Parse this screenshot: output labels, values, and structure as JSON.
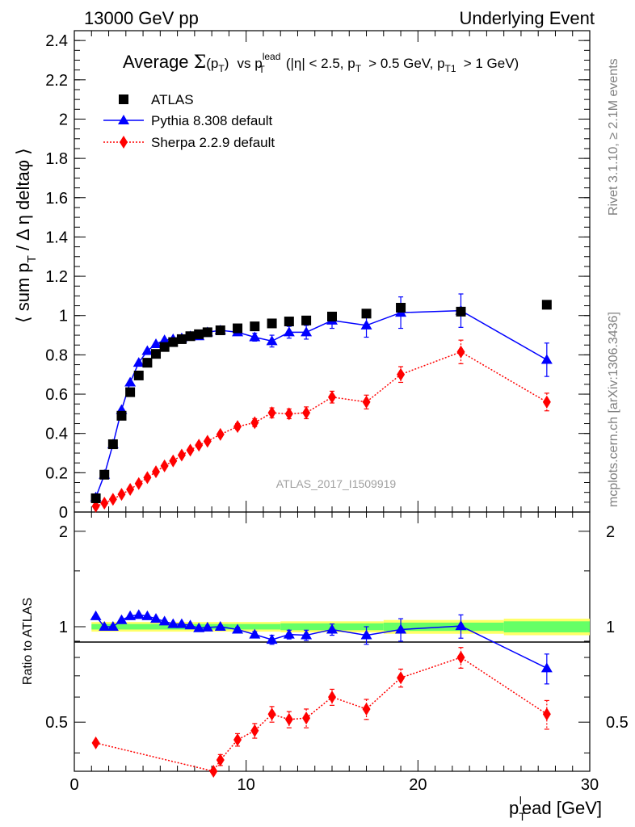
{
  "header": {
    "left": "13000 GeV pp",
    "right": "Underlying Event"
  },
  "side_text": {
    "rivet": "Rivet 3.1.10, ≥ 2.1M events",
    "mcplots": "mcplots.cern.ch [arXiv:1306.3436]"
  },
  "title": {
    "prefix": "Average",
    "sigma": "Σ",
    "pt_open": "(p",
    "sub_t": "T",
    "pt_close": ")",
    "vs_p": "vs p",
    "sup_lead": "lead",
    "sub_t2": "T",
    "cuts1": "(|η| < 2.5, p",
    "sub_t3": "T",
    "cuts2": "> 0.5 GeV, p",
    "sub_t1": "T1",
    "cuts3": "> 1 GeV)"
  },
  "watermark": "ATLAS_2017_I1509919",
  "colors": {
    "data": "#000000",
    "pythia": "#0000ff",
    "sherpa": "#ff0000",
    "band_inner": "#66ff66",
    "band_outer": "#ffff66"
  },
  "chart_data": [
    {
      "type": "scatter",
      "panel": "main",
      "ylabel": "⟨ sum p_T / Δη deltaφ ⟩",
      "ylabel_parts": {
        "a": "⟨ sum p",
        "sub": "T",
        "b": " / Δ η deltaφ ⟩"
      },
      "xlim": [
        0,
        30
      ],
      "ylim": [
        0,
        2.45
      ],
      "yticks": [
        "0",
        "0.2",
        "0.4",
        "0.6",
        "0.8",
        "1",
        "1.2",
        "1.4",
        "1.6",
        "1.8",
        "2",
        "2.2",
        "2.4"
      ],
      "legend_position": "top-left",
      "series": [
        {
          "name": "ATLAS",
          "marker": "square",
          "x": [
            1.25,
            1.75,
            2.25,
            2.75,
            3.25,
            3.75,
            4.25,
            4.75,
            5.25,
            5.75,
            6.25,
            6.75,
            7.25,
            7.75,
            8.5,
            9.5,
            10.5,
            11.5,
            12.5,
            13.5,
            15.0,
            17.0,
            19.0,
            22.5,
            27.5
          ],
          "y": [
            0.07,
            0.19,
            0.345,
            0.49,
            0.61,
            0.695,
            0.76,
            0.805,
            0.84,
            0.865,
            0.88,
            0.895,
            0.905,
            0.915,
            0.925,
            0.935,
            0.945,
            0.96,
            0.97,
            0.975,
            0.995,
            1.01,
            1.04,
            1.02,
            1.055
          ]
        },
        {
          "name": "Pythia 8.308 default",
          "marker": "triangle",
          "x": [
            1.25,
            1.75,
            2.25,
            2.75,
            3.25,
            3.75,
            4.25,
            4.75,
            5.25,
            5.75,
            6.25,
            6.75,
            7.25,
            7.75,
            8.5,
            9.5,
            10.5,
            11.5,
            12.5,
            13.5,
            15.0,
            17.0,
            19.0,
            22.5,
            27.5
          ],
          "y": [
            0.075,
            0.19,
            0.345,
            0.52,
            0.66,
            0.76,
            0.82,
            0.855,
            0.875,
            0.88,
            0.885,
            0.895,
            0.895,
            0.915,
            0.925,
            0.915,
            0.89,
            0.87,
            0.915,
            0.915,
            0.975,
            0.95,
            1.015,
            1.025,
            0.775
          ],
          "err": [
            0,
            0,
            0,
            0,
            0,
            0,
            0,
            0,
            0,
            0,
            0,
            0,
            0,
            0,
            0,
            0.015,
            0.02,
            0.03,
            0.03,
            0.035,
            0.04,
            0.06,
            0.08,
            0.085,
            0.085
          ]
        },
        {
          "name": "Sherpa 2.2.9 default",
          "marker": "diamond",
          "x": [
            1.25,
            1.75,
            2.25,
            2.75,
            3.25,
            3.75,
            4.25,
            4.75,
            5.25,
            5.75,
            6.25,
            6.75,
            7.25,
            7.75,
            8.5,
            9.5,
            10.5,
            11.5,
            12.5,
            13.5,
            15.0,
            17.0,
            19.0,
            22.5,
            27.5
          ],
          "y": [
            0.03,
            0.045,
            0.065,
            0.09,
            0.115,
            0.145,
            0.175,
            0.205,
            0.235,
            0.26,
            0.29,
            0.315,
            0.34,
            0.36,
            0.395,
            0.435,
            0.455,
            0.505,
            0.5,
            0.505,
            0.585,
            0.56,
            0.7,
            0.815,
            0.56
          ],
          "err": [
            0,
            0,
            0,
            0,
            0,
            0,
            0,
            0,
            0,
            0,
            0,
            0,
            0,
            0,
            0.01,
            0.015,
            0.02,
            0.025,
            0.025,
            0.03,
            0.03,
            0.035,
            0.04,
            0.06,
            0.045
          ]
        }
      ]
    },
    {
      "type": "scatter",
      "panel": "ratio",
      "ylabel": "Ratio to ATLAS",
      "xlabel": "p_T^l ead [GeV]",
      "xlabel_parts": {
        "p": "p",
        "sub": "T",
        "sup": "l",
        "rest": "ead [GeV]"
      },
      "xlim": [
        0,
        30
      ],
      "ylim": [
        0.35,
        2.3
      ],
      "xticks": [
        "0",
        "10",
        "20",
        "30"
      ],
      "yticks": [
        "0.5",
        "1",
        "2"
      ],
      "data_band": {
        "x_edges": [
          1.0,
          7.5,
          9.0,
          12.0,
          18.0,
          25.0,
          30.0
        ],
        "inner": [
          0.02,
          0.02,
          0.02,
          0.025,
          0.03,
          0.04
        ],
        "outer": [
          0.035,
          0.035,
          0.035,
          0.04,
          0.05,
          0.06
        ]
      },
      "series": [
        {
          "name": "Pythia 8.308 default",
          "x": [
            1.25,
            1.75,
            2.25,
            2.75,
            3.25,
            3.75,
            4.25,
            4.75,
            5.25,
            5.75,
            6.25,
            6.75,
            7.25,
            7.75,
            8.5,
            9.5,
            10.5,
            11.5,
            12.5,
            13.5,
            15.0,
            17.0,
            19.0,
            22.5,
            27.5
          ],
          "y": [
            1.08,
            1.0,
            1.0,
            1.05,
            1.08,
            1.09,
            1.08,
            1.06,
            1.04,
            1.02,
            1.02,
            1.01,
            0.99,
            0.995,
            1.0,
            0.98,
            0.945,
            0.91,
            0.945,
            0.94,
            0.98,
            0.94,
            0.98,
            1.005,
            0.74
          ],
          "err": [
            0,
            0,
            0,
            0,
            0,
            0,
            0,
            0,
            0,
            0,
            0,
            0,
            0,
            0,
            0,
            0.015,
            0.02,
            0.03,
            0.03,
            0.035,
            0.04,
            0.06,
            0.08,
            0.085,
            0.08
          ]
        },
        {
          "name": "Sherpa 2.2.9 default",
          "x": [
            1.25,
            8.1,
            8.5,
            9.5,
            10.5,
            11.5,
            12.5,
            13.5,
            15.0,
            17.0,
            19.0,
            22.5,
            27.5
          ],
          "y": [
            0.43,
            0.35,
            0.38,
            0.44,
            0.47,
            0.53,
            0.51,
            0.515,
            0.6,
            0.55,
            0.69,
            0.8,
            0.53
          ],
          "err": [
            0,
            0,
            0.015,
            0.02,
            0.025,
            0.03,
            0.03,
            0.035,
            0.035,
            0.04,
            0.045,
            0.06,
            0.055
          ]
        }
      ]
    }
  ]
}
